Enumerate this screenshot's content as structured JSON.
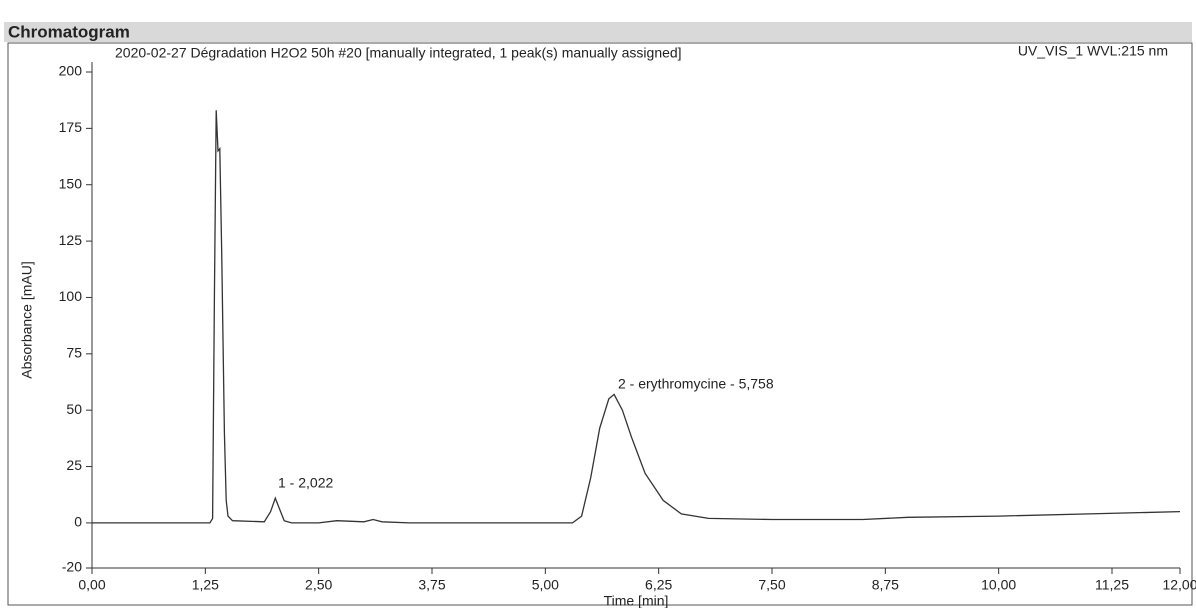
{
  "header": "Chromatogram",
  "chart_data": {
    "type": "line",
    "title": "2020-02-27 Dégradation H2O2 50h #20 [manually integrated, 1 peak(s) manually assigned]",
    "subtitle": "UV_VIS_1 WVL:215 nm",
    "x_label": "Time [min]",
    "y_label": "Absorbance [mAU]",
    "annotations": [
      "1 - 2,022",
      "2 - erythromycine - 5,758"
    ],
    "color": "#333333",
    "x": [
      0,
      1.3,
      1.33,
      1.35,
      1.37,
      1.39,
      1.41,
      1.43,
      1.46,
      1.48,
      1.5,
      1.55,
      1.9,
      1.97,
      2.022,
      2.07,
      2.12,
      2.2,
      2.5,
      2.7,
      3.0,
      3.1,
      3.2,
      3.5,
      5.3,
      5.4,
      5.5,
      5.6,
      5.7,
      5.758,
      5.85,
      5.95,
      6.1,
      6.3,
      6.5,
      6.8,
      7.5,
      8.5,
      9.0,
      10.0,
      11.0,
      12.0
    ],
    "values": [
      0,
      0,
      2,
      100,
      183,
      165,
      166,
      120,
      40,
      10,
      3,
      1,
      0.5,
      5,
      11,
      6,
      1,
      0,
      0,
      1,
      0.5,
      1.5,
      0.5,
      0,
      0,
      3,
      20,
      42,
      55,
      57,
      50,
      38,
      22,
      10,
      4,
      2,
      1.5,
      1.5,
      2.5,
      3,
      4,
      5
    ],
    "xlim": [
      0,
      12
    ],
    "ylim": [
      -20,
      200
    ],
    "xticks": [
      {
        "value": 0,
        "label": "0,00"
      },
      {
        "value": 1.25,
        "label": "1,25"
      },
      {
        "value": 2.5,
        "label": "2,50"
      },
      {
        "value": 3.75,
        "label": "3,75"
      },
      {
        "value": 5,
        "label": "5,00"
      },
      {
        "value": 6.25,
        "label": "6,25"
      },
      {
        "value": 7.5,
        "label": "7,50"
      },
      {
        "value": 8.75,
        "label": "8,75"
      },
      {
        "value": 10,
        "label": "10,00"
      },
      {
        "value": 11.25,
        "label": "11,25"
      },
      {
        "value": 12,
        "label": "12,00"
      }
    ],
    "yticks": [
      -20,
      0,
      25,
      50,
      75,
      100,
      125,
      150,
      175,
      200
    ],
    "grid": false
  }
}
